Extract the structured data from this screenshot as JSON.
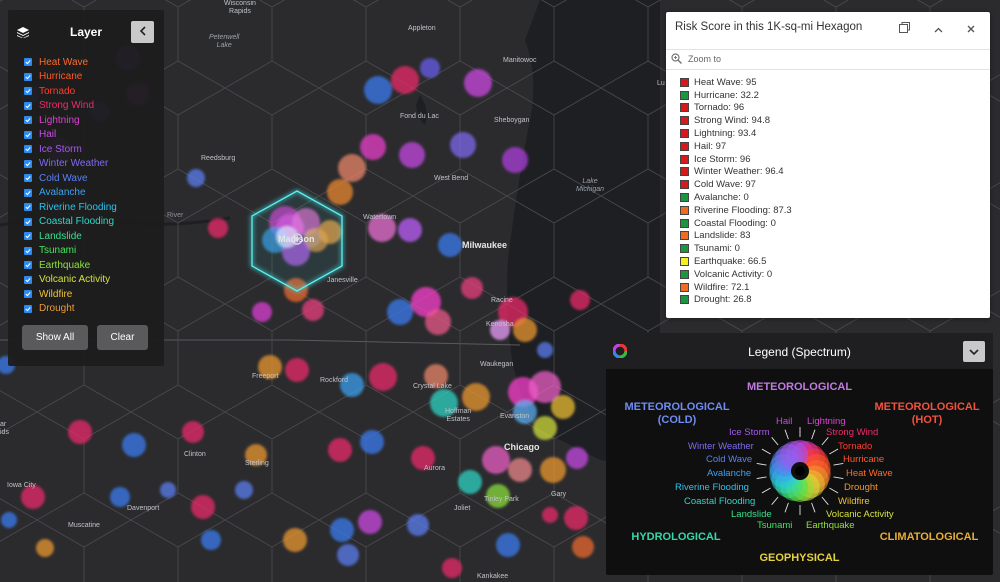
{
  "layer_panel": {
    "title": "Layer",
    "items": [
      {
        "label": "Heat Wave",
        "color": "#ff6a2a"
      },
      {
        "label": "Hurricane",
        "color": "#ff5a28"
      },
      {
        "label": "Tornado",
        "color": "#ff3c2e"
      },
      {
        "label": "Strong Wind",
        "color": "#f02a6a"
      },
      {
        "label": "Lightning",
        "color": "#e03fd8"
      },
      {
        "label": "Hail",
        "color": "#c84ae8"
      },
      {
        "label": "Ice Storm",
        "color": "#a758ee"
      },
      {
        "label": "Winter Weather",
        "color": "#7f6af2"
      },
      {
        "label": "Cold Wave",
        "color": "#5a80f4"
      },
      {
        "label": "Avalanche",
        "color": "#3aa2f4"
      },
      {
        "label": "Riverine Flooding",
        "color": "#29c4ee"
      },
      {
        "label": "Coastal Flooding",
        "color": "#2fd8c8"
      },
      {
        "label": "Landslide",
        "color": "#39e08f"
      },
      {
        "label": "Tsunami",
        "color": "#3fe85a"
      },
      {
        "label": "Earthquake",
        "color": "#8ee23a"
      },
      {
        "label": "Volcanic Activity",
        "color": "#d6e23a"
      },
      {
        "label": "Wildfire",
        "color": "#f0c233"
      },
      {
        "label": "Drought",
        "color": "#f09a2e"
      }
    ],
    "show_all_label": "Show All",
    "clear_label": "Clear"
  },
  "popup": {
    "title": "Risk Score in this 1K-sq-mi Hexagon",
    "zoom_label": "Zoom to",
    "rows": [
      {
        "label": "Heat Wave: 95",
        "color": "#d7191c"
      },
      {
        "label": "Hurricane: 32.2",
        "color": "#1a9641"
      },
      {
        "label": "Tornado: 96",
        "color": "#d7191c"
      },
      {
        "label": "Strong Wind: 94.8",
        "color": "#d7191c"
      },
      {
        "label": "Lightning: 93.4",
        "color": "#d7191c"
      },
      {
        "label": "Hail: 97",
        "color": "#d7191c"
      },
      {
        "label": "Ice Storm: 96",
        "color": "#d7191c"
      },
      {
        "label": "Winter Weather: 96.4",
        "color": "#d7191c"
      },
      {
        "label": "Cold Wave: 97",
        "color": "#d7191c"
      },
      {
        "label": "Avalanche: 0",
        "color": "#1a9641"
      },
      {
        "label": "Riverine Flooding: 87.3",
        "color": "#f06c20"
      },
      {
        "label": "Coastal Flooding: 0",
        "color": "#1a9641"
      },
      {
        "label": "Landslide: 83",
        "color": "#f06c20"
      },
      {
        "label": "Tsunami: 0",
        "color": "#1a9641"
      },
      {
        "label": "Earthquake: 66.5",
        "color": "#f2f01e"
      },
      {
        "label": "Volcanic Activity: 0",
        "color": "#1a9641"
      },
      {
        "label": "Wildfire: 72.1",
        "color": "#f06c20"
      },
      {
        "label": "Drought: 26.8",
        "color": "#1a9641"
      }
    ]
  },
  "legend": {
    "title": "Legend (Spectrum)",
    "categories": {
      "meteorological": "METEOROLOGICAL",
      "meteorological_cold_1": "METEOROLOGICAL",
      "meteorological_cold_2": "(COLD)",
      "meteorological_hot_1": "METEOROLOGICAL",
      "meteorological_hot_2": "(HOT)",
      "hydrological": "HYDROLOGICAL",
      "geophysical": "GEOPHYSICAL",
      "climatological": "CLIMATOLOGICAL"
    },
    "labels": {
      "hail": "Hail",
      "lightning": "Lightning",
      "ice_storm": "Ice Storm",
      "strong_wind": "Strong Wind",
      "winter_weather": "Winter Weather",
      "tornado": "Tornado",
      "cold_wave": "Cold Wave",
      "hurricane": "Hurricane",
      "avalanche": "Avalanche",
      "heat_wave": "Heat Wave",
      "riverine_flooding": "Riverine Flooding",
      "drought": "Drought",
      "coastal_flooding": "Coastal Flooding",
      "wildfire": "Wildfire",
      "landslide": "Landslide",
      "volcanic_activity": "Volcanic Activity",
      "tsunami": "Tsunami",
      "earthquake": "Earthquake"
    }
  },
  "map": {
    "cities": {
      "wisconsin_rapids_1": "Wisconsin",
      "wisconsin_rapids_2": "Rapids",
      "appleton": "Appleton",
      "manitowoc": "Manitowoc",
      "petenwell_1": "Petenwell",
      "petenwell_2": "Lake",
      "fond_du_lac": "Fond du Lac",
      "sheboygan": "Sheboygan",
      "reedsburg": "Reedsburg",
      "west_bend": "West Bend",
      "lake_michigan_1": "Lake",
      "lake_michigan_2": "Michigan",
      "watertown": "Watertown",
      "madison": "Madison",
      "milwaukee": "Milwaukee",
      "river": "River",
      "janesville": "Janesville",
      "racine": "Racine",
      "kenosha": "Kenosha",
      "waukegan": "Waukegan",
      "freeport": "Freeport",
      "rockford": "Rockford",
      "crystal_lake": "Crystal Lake",
      "hoffman_estates_1": "Hoffman",
      "hoffman_estates_2": "Estates",
      "evanston": "Evanston",
      "chicago": "Chicago",
      "dubuque_1": "ar",
      "dubuque_2": "ids",
      "clinton": "Clinton",
      "sterling": "Sterling",
      "aurora": "Aurora",
      "gary": "Gary",
      "iowa_city": "Iowa City",
      "davenport": "Davenport",
      "joliet": "Joliet",
      "tinley_park": "Tinley Park",
      "muscatine": "Muscatine",
      "kankakee": "Kankakee",
      "lu": "Lu"
    }
  }
}
